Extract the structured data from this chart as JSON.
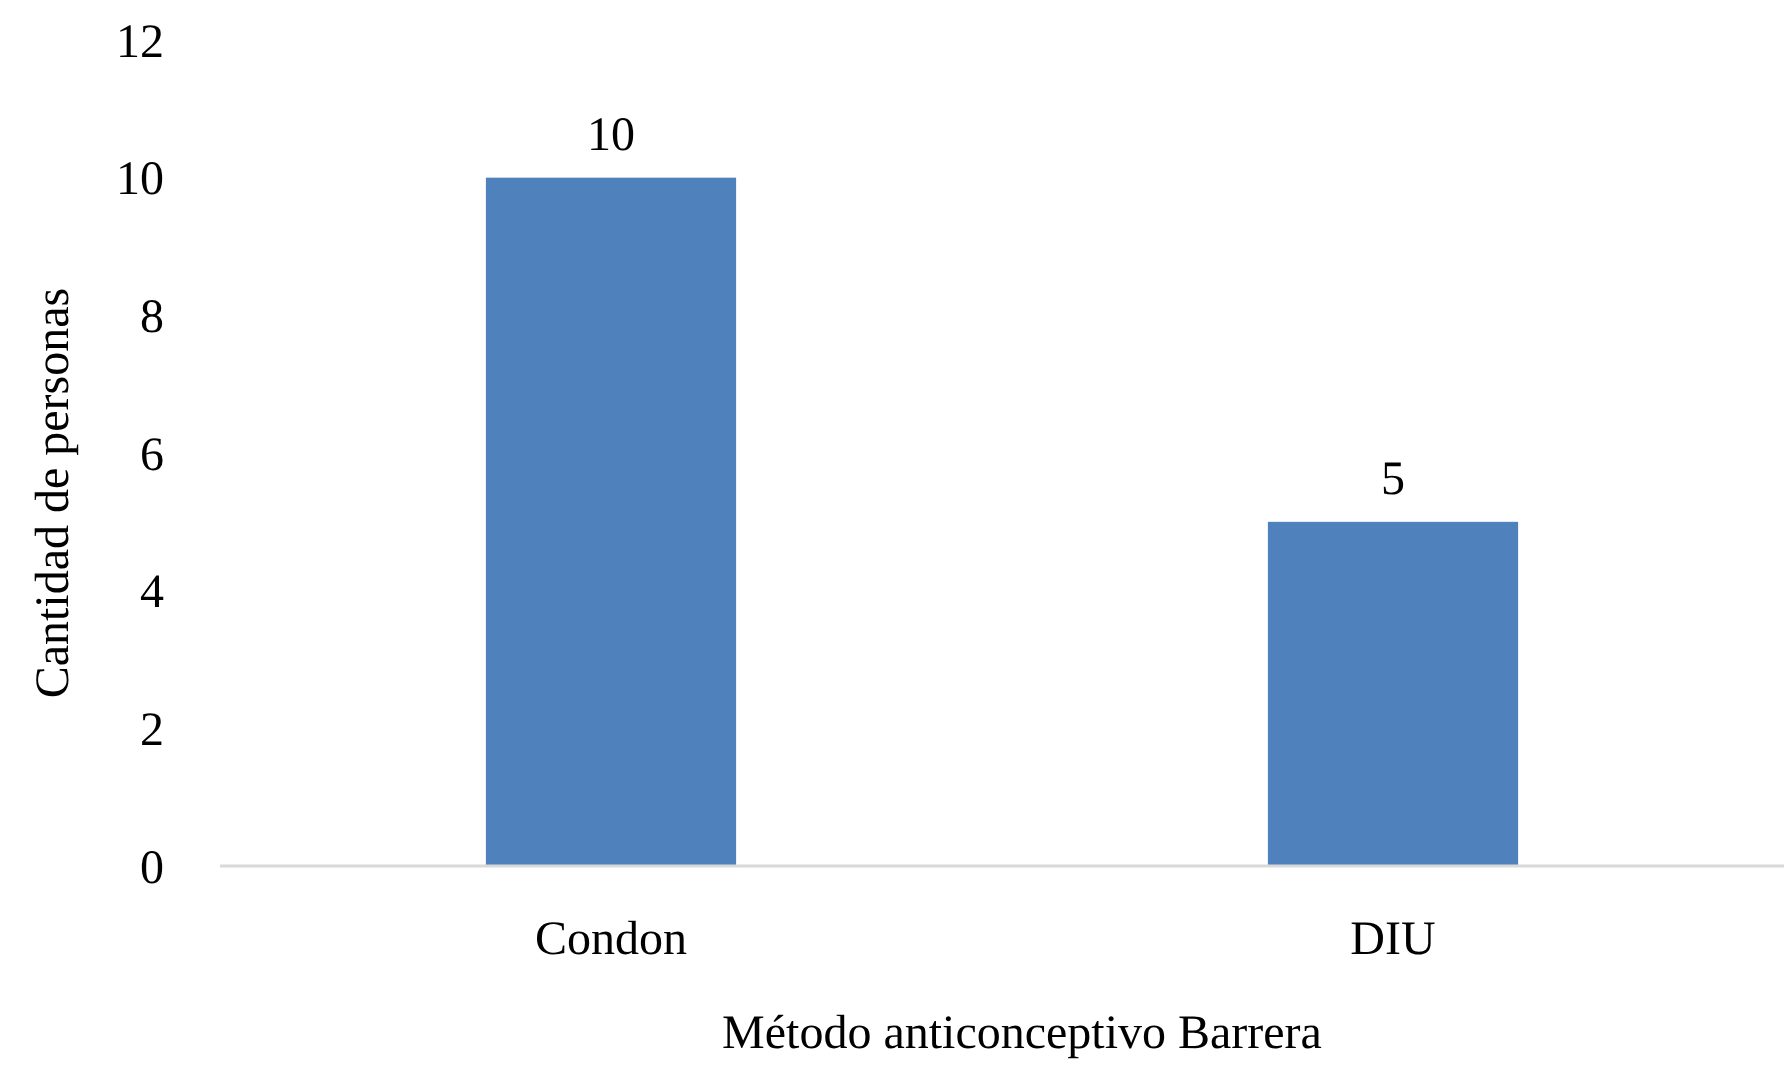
{
  "chart_data": {
    "type": "bar",
    "xlabel": "Método anticonceptivo Barrera",
    "ylabel": "Cantidad de personas",
    "categories": [
      "Condon",
      "DIU"
    ],
    "values": [
      10,
      5
    ],
    "color": "#4f81bd",
    "ylim": [
      0,
      12
    ],
    "yticks": [
      0,
      2,
      4,
      6,
      8,
      10,
      12
    ],
    "data_labels": true,
    "grid": false
  }
}
